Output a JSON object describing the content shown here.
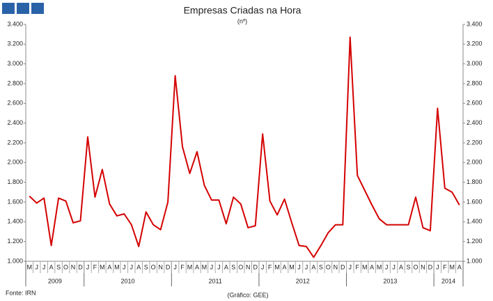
{
  "chart_data": {
    "type": "line",
    "title": "Empresas Criadas na Hora",
    "subtitle": "(nº)",
    "source": "Fonte: IRN",
    "note": "(Gráfico: GEE)",
    "categories": [
      "M",
      "J",
      "J",
      "A",
      "S",
      "O",
      "N",
      "D",
      "J",
      "F",
      "M",
      "A",
      "M",
      "J",
      "J",
      "A",
      "S",
      "O",
      "N",
      "D",
      "J",
      "F",
      "M",
      "A",
      "M",
      "J",
      "J",
      "A",
      "S",
      "O",
      "N",
      "D",
      "J",
      "F",
      "M",
      "A",
      "M",
      "J",
      "J",
      "A",
      "S",
      "O",
      "N",
      "D",
      "J",
      "F",
      "M",
      "A",
      "M",
      "J",
      "J",
      "A",
      "S",
      "O",
      "N",
      "D",
      "J",
      "F",
      "M",
      "A"
    ],
    "years": [
      "2009",
      "2010",
      "2011",
      "2012",
      "2013",
      "2014"
    ],
    "series": [
      {
        "name": "Empresas Criadas na Hora",
        "color": "#d40000",
        "values": [
          1660,
          1590,
          1640,
          1160,
          1640,
          1610,
          1390,
          1410,
          2260,
          1650,
          1930,
          1580,
          1460,
          1480,
          1370,
          1150,
          1500,
          1370,
          1320,
          1600,
          2880,
          2160,
          1890,
          2110,
          1770,
          1620,
          1620,
          1380,
          1650,
          1580,
          1340,
          1360,
          2290,
          1610,
          1470,
          1630,
          1390,
          1160,
          1150,
          1040,
          1160,
          1290,
          1370,
          1370,
          3270,
          1870,
          1720,
          1570,
          1430,
          1370,
          1370,
          1370,
          1370,
          1650,
          1340,
          1310,
          2550,
          1740,
          1700,
          1570
        ]
      }
    ],
    "ylim": [
      1000,
      3400
    ],
    "yticks": [
      {
        "value": 1000,
        "label": "1.000"
      },
      {
        "value": 1200,
        "label": "1.200"
      },
      {
        "value": 1400,
        "label": "1.400"
      },
      {
        "value": 1600,
        "label": "1.600"
      },
      {
        "value": 1800,
        "label": "1.800"
      },
      {
        "value": 2000,
        "label": "2.000"
      },
      {
        "value": 2200,
        "label": "2.200"
      },
      {
        "value": 2400,
        "label": "2.400"
      },
      {
        "value": 2600,
        "label": "2.600"
      },
      {
        "value": 2800,
        "label": "2.800"
      },
      {
        "value": 3000,
        "label": "3.000"
      },
      {
        "value": 3200,
        "label": "3.200"
      },
      {
        "value": 3400,
        "label": "3.400"
      }
    ],
    "right_axis": true,
    "grid": false
  }
}
